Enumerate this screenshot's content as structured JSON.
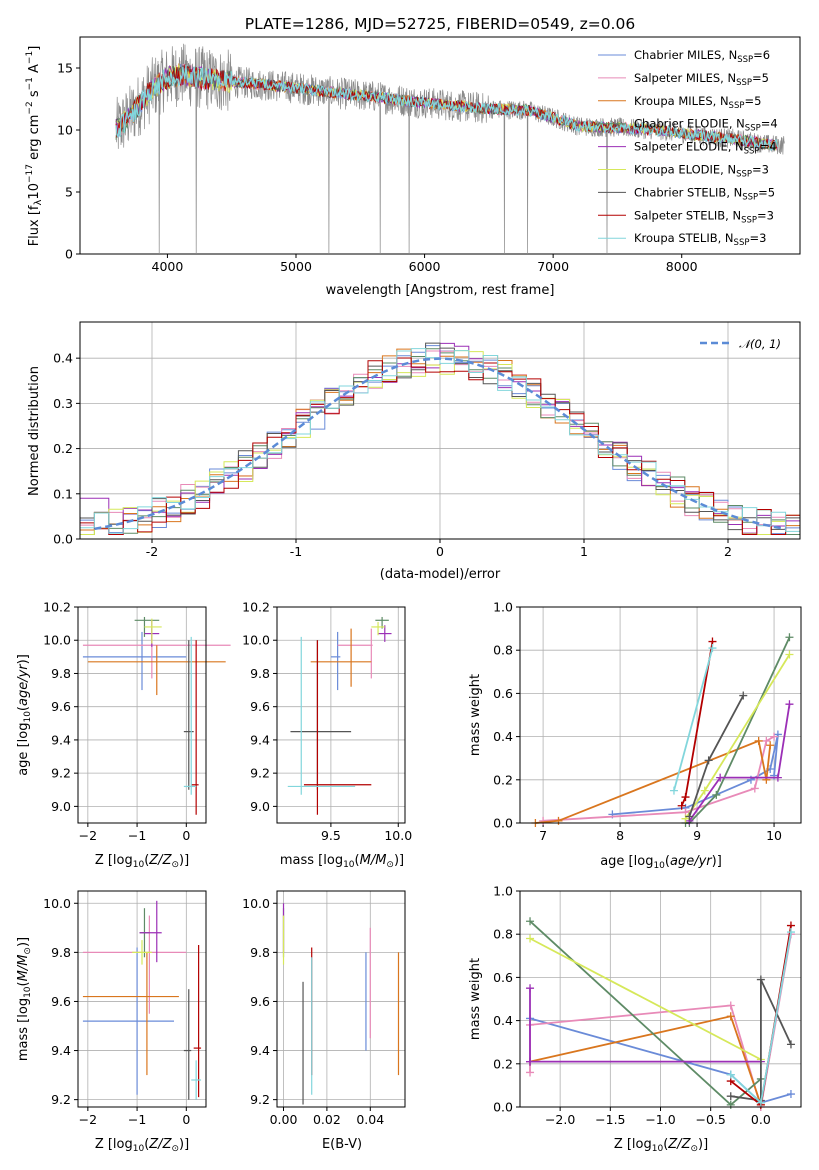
{
  "figure": {
    "title": "PLATE=1286, MJD=52725, FIBERID=0549, z=0.06"
  },
  "colors": [
    "#6a8bd8",
    "#e88ab8",
    "#d9761e",
    "#5e8b66",
    "#9b2fb6",
    "#d6e85a",
    "#555555",
    "#b30000",
    "#82d6dc"
  ],
  "chart_data": [
    {
      "id": "spectrum",
      "type": "line",
      "xlabel": "wavelength [Angstrom, rest frame]",
      "ylabel": "Flux [f_λ10^-17 erg cm^-2 s^-1 A^-1]",
      "xlim": [
        3320,
        8920
      ],
      "ylim": [
        0,
        17.5
      ],
      "xticks": [
        4000,
        5000,
        6000,
        7000,
        8000
      ],
      "yticks": [
        0,
        5,
        10,
        15
      ],
      "grid": false,
      "legend_position": "top-right",
      "series": [
        {
          "model": "Chabrier MILES",
          "nssp": "6"
        },
        {
          "model": "Salpeter MILES",
          "nssp": "5"
        },
        {
          "model": "Kroupa MILES",
          "nssp": "5"
        },
        {
          "model": "Chabrier ELODIE",
          "nssp": "4"
        },
        {
          "model": "Salpeter ELODIE",
          "nssp": "4"
        },
        {
          "model": "Kroupa ELODIE",
          "nssp": "3"
        },
        {
          "model": "Chabrier STELIB",
          "nssp": "5"
        },
        {
          "model": "Salpeter STELIB",
          "nssp": "3"
        },
        {
          "model": "Kroupa STELIB",
          "nssp": "3"
        }
      ],
      "continuum": [
        [
          3600,
          10.0
        ],
        [
          3700,
          11.0
        ],
        [
          3800,
          12.3
        ],
        [
          3900,
          13.5
        ],
        [
          4000,
          14.2
        ],
        [
          4100,
          14.5
        ],
        [
          4200,
          14.3
        ],
        [
          4400,
          14.0
        ],
        [
          4700,
          13.7
        ],
        [
          5000,
          13.4
        ],
        [
          5300,
          13.0
        ],
        [
          5600,
          12.7
        ],
        [
          5900,
          12.3
        ],
        [
          6200,
          12.0
        ],
        [
          6500,
          11.7
        ],
        [
          6800,
          11.6
        ],
        [
          7000,
          11.0
        ],
        [
          7200,
          10.3
        ],
        [
          7500,
          10.2
        ],
        [
          7800,
          10.0
        ],
        [
          8100,
          9.6
        ],
        [
          8400,
          9.3
        ],
        [
          8700,
          8.8
        ]
      ],
      "data_spikes": [
        3935,
        4225,
        5255,
        5655,
        5880,
        6620,
        6800,
        7420
      ]
    },
    {
      "id": "residuals",
      "type": "histogram",
      "xlabel": "(data-model)/error",
      "ylabel": "Normed distribution",
      "xlim": [
        -2.5,
        2.5
      ],
      "ylim": [
        0,
        0.48
      ],
      "xticks": [
        -2,
        -1,
        0,
        1,
        2
      ],
      "yticks": [
        0.0,
        0.1,
        0.2,
        0.3,
        0.4
      ],
      "grid": true,
      "legend_position": "top-right",
      "legend_label": "N(0,1)",
      "bin_width": 0.1,
      "bins": 50
    },
    {
      "id": "age_vs_Z",
      "type": "errorbar",
      "xlabel": "Z [log10(Z/Z⊙)]",
      "ylabel": "age [log10(age/yr)]",
      "xlim": [
        -2.2,
        0.4
      ],
      "ylim": [
        8.9,
        10.2
      ],
      "xticks": [
        -2,
        -1,
        0
      ],
      "yticks": [
        9.0,
        9.2,
        9.4,
        9.6,
        9.8,
        10.0,
        10.2
      ],
      "points": [
        {
          "x": -0.9,
          "xe": [
            1.2,
            0.9
          ],
          "y": 9.9,
          "ye": [
            0.2,
            0.15
          ]
        },
        {
          "x": -0.7,
          "xe": [
            1.4,
            1.6
          ],
          "y": 9.97,
          "ye": [
            0.2,
            0.1
          ]
        },
        {
          "x": -0.6,
          "xe": [
            1.4,
            1.4
          ],
          "y": 9.87,
          "ye": [
            0.2,
            0.1
          ]
        },
        {
          "x": -0.85,
          "xe": [
            0.2,
            0.3
          ],
          "y": 10.12,
          "ye": [
            0.1,
            0.02
          ]
        },
        {
          "x": -0.7,
          "xe": [
            0.15,
            0.15
          ],
          "y": 10.04,
          "ye": [
            0.08,
            0.08
          ]
        },
        {
          "x": -0.7,
          "xe": [
            0.15,
            0.2
          ],
          "y": 10.08,
          "ye": [
            0.1,
            0.05
          ]
        },
        {
          "x": 0.05,
          "xe": [
            0.1,
            0.1
          ],
          "y": 9.45,
          "ye": [
            0.35,
            0.55
          ]
        },
        {
          "x": 0.2,
          "xe": [
            0.1,
            0.05
          ],
          "y": 9.13,
          "ye": [
            0.18,
            0.87
          ]
        },
        {
          "x": 0.1,
          "xe": [
            0.15,
            0.1
          ],
          "y": 9.12,
          "ye": [
            0.05,
            0.9
          ]
        }
      ]
    },
    {
      "id": "age_vs_mass",
      "type": "errorbar",
      "xlabel": "mass [log10(M/M⊙)]",
      "ylabel": "",
      "xlim": [
        9.1,
        10.05
      ],
      "ylim": [
        8.9,
        10.2
      ],
      "xticks": [
        9.5,
        10.0
      ],
      "yticks": [
        9.0,
        9.2,
        9.4,
        9.6,
        9.8,
        10.0,
        10.2
      ],
      "points": [
        {
          "x": 9.55,
          "xe": [
            0.05,
            0.02
          ],
          "y": 9.9,
          "ye": [
            0.2,
            0.15
          ]
        },
        {
          "x": 9.8,
          "xe": [
            0.25,
            0.01
          ],
          "y": 9.97,
          "ye": [
            0.2,
            0.1
          ]
        },
        {
          "x": 9.65,
          "xe": [
            0.3,
            0.15
          ],
          "y": 9.87,
          "ye": [
            0.15,
            0.2
          ]
        },
        {
          "x": 9.88,
          "xe": [
            0.05,
            0.05
          ],
          "y": 10.12,
          "ye": [
            0.05,
            0.02
          ]
        },
        {
          "x": 9.9,
          "xe": [
            0.05,
            0.05
          ],
          "y": 10.04,
          "ye": [
            0.05,
            0.05
          ]
        },
        {
          "x": 9.85,
          "xe": [
            0.05,
            0.05
          ],
          "y": 10.08,
          "ye": [
            0.05,
            0.03
          ]
        },
        {
          "x": 9.4,
          "xe": [
            0.2,
            0.25
          ],
          "y": 9.45,
          "ye": [
            0.35,
            0.55
          ]
        },
        {
          "x": 9.4,
          "xe": [
            0.1,
            0.4
          ],
          "y": 9.13,
          "ye": [
            0.18,
            0.87
          ]
        },
        {
          "x": 9.28,
          "xe": [
            0.1,
            0.4
          ],
          "y": 9.12,
          "ye": [
            0.05,
            0.9
          ]
        }
      ]
    },
    {
      "id": "massweight_vs_age",
      "type": "line",
      "xlabel": "age [log10(age/yr)]",
      "ylabel": "mass weight",
      "xlim": [
        6.7,
        10.35
      ],
      "ylim": [
        0,
        1.0
      ],
      "xticks": [
        7,
        8,
        9,
        10
      ],
      "yticks": [
        0.0,
        0.2,
        0.4,
        0.6,
        0.8,
        1.0
      ],
      "grid": true,
      "series": [
        [
          [
            7.9,
            0.04
          ],
          [
            8.85,
            0.07
          ],
          [
            9.7,
            0.2
          ],
          [
            9.95,
            0.25
          ],
          [
            10.05,
            0.41
          ],
          [
            10.0,
            0.22
          ]
        ],
        [
          [
            7.0,
            0.01
          ],
          [
            8.85,
            0.05
          ],
          [
            9.75,
            0.16
          ],
          [
            9.9,
            0.38
          ],
          [
            10.0,
            0.4
          ]
        ],
        [
          [
            6.9,
            0.0
          ],
          [
            7.2,
            0.01
          ],
          [
            9.8,
            0.38
          ],
          [
            9.9,
            0.2
          ],
          [
            9.95,
            0.36
          ]
        ],
        [
          [
            8.85,
            0.0
          ],
          [
            8.9,
            0.0
          ],
          [
            9.25,
            0.13
          ],
          [
            10.2,
            0.86
          ]
        ],
        [
          [
            8.9,
            0.01
          ],
          [
            9.3,
            0.21
          ],
          [
            10.05,
            0.21
          ],
          [
            10.2,
            0.55
          ]
        ],
        [
          [
            8.85,
            0.02
          ],
          [
            9.1,
            0.15
          ],
          [
            10.2,
            0.78
          ]
        ],
        [
          [
            8.9,
            0.03
          ],
          [
            9.15,
            0.29
          ],
          [
            9.6,
            0.59
          ]
        ],
        [
          [
            8.8,
            0.08
          ],
          [
            8.85,
            0.12
          ],
          [
            9.2,
            0.84
          ]
        ],
        [
          [
            8.7,
            0.15
          ],
          [
            9.2,
            0.81
          ]
        ]
      ]
    },
    {
      "id": "mass_vs_Z",
      "type": "errorbar",
      "xlabel": "Z [log10(Z/Z⊙)]",
      "ylabel": "mass [log10(M/M⊙)]",
      "xlim": [
        -2.2,
        0.4
      ],
      "ylim": [
        9.17,
        10.05
      ],
      "xticks": [
        -2,
        -1,
        0
      ],
      "yticks": [
        9.2,
        9.4,
        9.6,
        9.8,
        10.0
      ],
      "points": [
        {
          "x": -1.0,
          "xe": [
            1.1,
            0.75
          ],
          "y": 9.52,
          "ye": [
            0.3,
            0.3
          ]
        },
        {
          "x": -0.75,
          "xe": [
            1.35,
            0.75
          ],
          "y": 9.8,
          "ye": [
            0.25,
            0.15
          ]
        },
        {
          "x": -0.8,
          "xe": [
            1.3,
            0.65
          ],
          "y": 9.62,
          "ye": [
            0.32,
            0.18
          ]
        },
        {
          "x": -0.85,
          "xe": [
            0.1,
            0.1
          ],
          "y": 9.88,
          "ye": [
            0.1,
            0.1
          ]
        },
        {
          "x": -0.6,
          "xe": [
            0.35,
            0.1
          ],
          "y": 9.88,
          "ye": [
            0.12,
            0.13
          ]
        },
        {
          "x": -0.9,
          "xe": [
            0.2,
            0.2
          ],
          "y": 9.8,
          "ye": [
            0.05,
            0.05
          ]
        },
        {
          "x": 0.05,
          "xe": [
            0.1,
            0.05
          ],
          "y": 9.4,
          "ye": [
            0.2,
            0.25
          ]
        },
        {
          "x": 0.25,
          "xe": [
            0.1,
            0.05
          ],
          "y": 9.41,
          "ye": [
            0.2,
            0.42
          ]
        },
        {
          "x": 0.2,
          "xe": [
            0.1,
            0.1
          ],
          "y": 9.28,
          "ye": [
            0.08,
            0.08
          ]
        }
      ]
    },
    {
      "id": "mass_vs_ebv",
      "type": "errorbar",
      "xlabel": "E(B-V)",
      "ylabel": "",
      "xlim": [
        -0.003,
        0.056
      ],
      "ylim": [
        9.17,
        10.05
      ],
      "xticks": [
        0.0,
        0.02,
        0.04
      ],
      "yticks": [
        9.2,
        9.4,
        9.6,
        9.8,
        10.0
      ],
      "points": [
        {
          "x": 0.038,
          "y": 9.6,
          "ye": [
            0.2,
            0.2
          ]
        },
        {
          "x": 0.04,
          "y": 9.65,
          "ye": [
            0.2,
            0.25
          ]
        },
        {
          "x": 0.053,
          "y": 9.55,
          "ye": [
            0.25,
            0.25
          ]
        },
        {
          "x": 0.0,
          "y": 9.88,
          "ye": [
            0.1,
            0.1
          ]
        },
        {
          "x": 0.0,
          "y": 9.9,
          "ye": [
            0.1,
            0.1
          ]
        },
        {
          "x": 0.0,
          "y": 9.85,
          "ye": [
            0.1,
            0.1
          ]
        },
        {
          "x": 0.009,
          "y": 9.42,
          "ye": [
            0.24,
            0.26
          ]
        },
        {
          "x": 0.013,
          "y": 9.5,
          "ye": [
            0.2,
            0.32
          ]
        },
        {
          "x": 0.013,
          "y": 9.5,
          "ye": [
            0.28,
            0.28
          ]
        }
      ]
    },
    {
      "id": "massweight_vs_Z",
      "type": "line",
      "xlabel": "Z [log10(Z/Z⊙)]",
      "ylabel": "mass weight",
      "xlim": [
        -2.4,
        0.4
      ],
      "ylim": [
        0,
        1.0
      ],
      "xticks": [
        -2.0,
        -1.5,
        -1.0,
        -0.5,
        0.0
      ],
      "yticks": [
        0.0,
        0.2,
        0.4,
        0.6,
        0.8,
        1.0
      ],
      "grid": true,
      "series": [
        [
          [
            -2.3,
            0.41
          ],
          [
            -0.3,
            0.15
          ],
          [
            0.0,
            0.02
          ],
          [
            0.3,
            0.06
          ]
        ],
        [
          [
            -2.3,
            0.16
          ],
          [
            -2.3,
            0.38
          ],
          [
            -0.3,
            0.47
          ],
          [
            0.0,
            0.0
          ],
          [
            0.3,
            0.8
          ]
        ],
        [
          [
            -2.3,
            0.21
          ],
          [
            -0.3,
            0.42
          ],
          [
            0.0,
            0.01
          ]
        ],
        [
          [
            -2.3,
            0.86
          ],
          [
            -0.3,
            0.01
          ],
          [
            0.0,
            0.13
          ]
        ],
        [
          [
            -2.3,
            0.21
          ],
          [
            -2.3,
            0.55
          ],
          [
            -2.3,
            0.21
          ],
          [
            0.0,
            0.21
          ]
        ],
        [
          [
            -2.3,
            0.78
          ],
          [
            0.0,
            0.22
          ]
        ],
        [
          [
            -0.3,
            0.05
          ],
          [
            0.0,
            0.03
          ],
          [
            0.0,
            0.59
          ],
          [
            0.3,
            0.29
          ]
        ],
        [
          [
            -0.3,
            0.12
          ],
          [
            0.0,
            0.01
          ],
          [
            0.3,
            0.84
          ]
        ],
        [
          [
            -0.3,
            0.15
          ],
          [
            0.0,
            0.02
          ],
          [
            0.3,
            0.81
          ]
        ]
      ]
    }
  ]
}
